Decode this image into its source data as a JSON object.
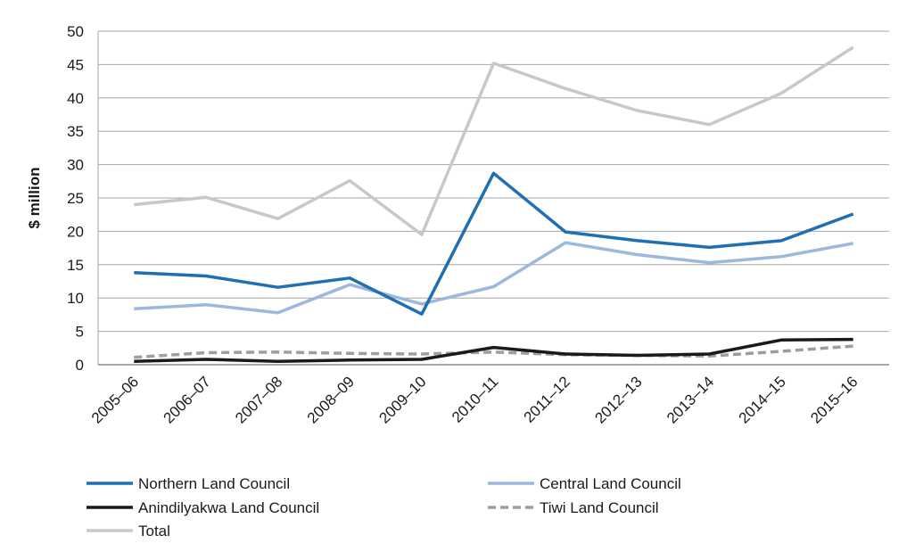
{
  "chart_data": {
    "type": "line",
    "title": "",
    "xlabel": "",
    "ylabel": "$ million",
    "ylim": [
      0,
      50
    ],
    "yticks": [
      0,
      5,
      10,
      15,
      20,
      25,
      30,
      35,
      40,
      45,
      50
    ],
    "grid": true,
    "legend_position": "bottom",
    "categories": [
      "2005–06",
      "2006–07",
      "2007–08",
      "2008–09",
      "2009–10",
      "2010–11",
      "2011–12",
      "2012–13",
      "2013–14",
      "2014–15",
      "2015–16"
    ],
    "series": [
      {
        "name": "Northern Land Council",
        "color": "#1f6fb2",
        "dash": "solid",
        "values": [
          13.8,
          13.3,
          11.6,
          13.0,
          7.6,
          28.7,
          19.9,
          18.6,
          17.6,
          18.6,
          22.6
        ]
      },
      {
        "name": "Central Land Council",
        "color": "#9db8dc",
        "dash": "solid",
        "values": [
          8.4,
          9.0,
          7.8,
          12.0,
          9.1,
          11.7,
          18.3,
          16.5,
          15.3,
          16.2,
          18.2
        ]
      },
      {
        "name": "Anindilyakwa Land Council",
        "color": "#1a1a1a",
        "dash": "solid",
        "values": [
          0.5,
          0.8,
          0.5,
          0.7,
          0.8,
          2.6,
          1.6,
          1.4,
          1.6,
          3.7,
          3.8
        ]
      },
      {
        "name": "Tiwi Land Council",
        "color": "#9e9e9e",
        "dash": "dashed",
        "values": [
          1.1,
          1.8,
          1.9,
          1.7,
          1.6,
          1.9,
          1.5,
          1.4,
          1.3,
          2.0,
          2.8
        ]
      },
      {
        "name": "Total",
        "color": "#c8c8c8",
        "dash": "solid",
        "values": [
          24.0,
          25.1,
          21.9,
          27.6,
          19.5,
          45.2,
          41.4,
          38.1,
          36.0,
          40.7,
          47.6
        ]
      }
    ]
  }
}
